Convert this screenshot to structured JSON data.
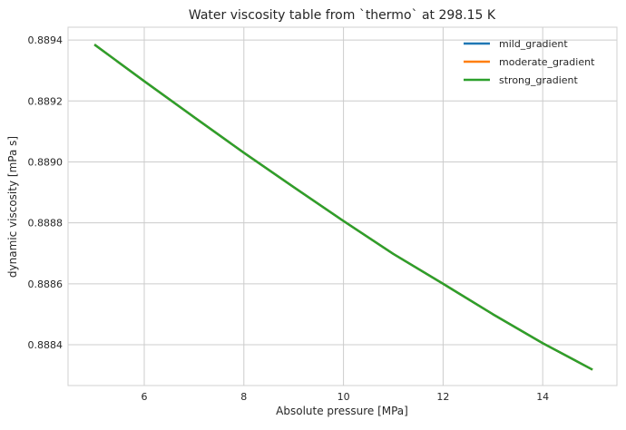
{
  "chart_data": {
    "type": "line",
    "title": "Water viscosity table from `thermo` at 298.15 K",
    "xlabel": "Absolute pressure [MPa]",
    "ylabel": "dynamic viscosity [mPa s]",
    "xlim": [
      4.47,
      15.49
    ],
    "ylim": [
      0.888266,
      0.889442
    ],
    "xticks": [
      6,
      8,
      10,
      12,
      14
    ],
    "yticks": [
      0.8884,
      0.8886,
      0.8888,
      0.889,
      0.8892,
      0.8894
    ],
    "xtick_labels": [
      "6",
      "8",
      "10",
      "12",
      "14"
    ],
    "ytick_labels": [
      "0.8884",
      "0.8886",
      "0.8888",
      "0.8890",
      "0.8892",
      "0.8894"
    ],
    "grid": true,
    "legend_position": "top-right",
    "x": [
      5,
      6,
      7,
      8,
      9,
      10,
      11,
      12,
      13,
      14,
      15
    ],
    "series": [
      {
        "name": "mild_gradient",
        "color": "#1f77b4",
        "values": [
          0.889385,
          0.889265,
          0.889147,
          0.88903,
          0.888917,
          0.888806,
          0.888698,
          0.8886,
          0.8885,
          0.888405,
          0.888318
        ]
      },
      {
        "name": "moderate_gradient",
        "color": "#ff7f0e",
        "values": [
          0.889385,
          0.889265,
          0.889147,
          0.88903,
          0.888917,
          0.888806,
          0.888698,
          0.8886,
          0.8885,
          0.888405,
          0.888318
        ]
      },
      {
        "name": "strong_gradient",
        "color": "#2ca02c",
        "values": [
          0.889385,
          0.889265,
          0.889147,
          0.88903,
          0.888917,
          0.888806,
          0.888698,
          0.8886,
          0.8885,
          0.888405,
          0.888318
        ]
      }
    ]
  }
}
